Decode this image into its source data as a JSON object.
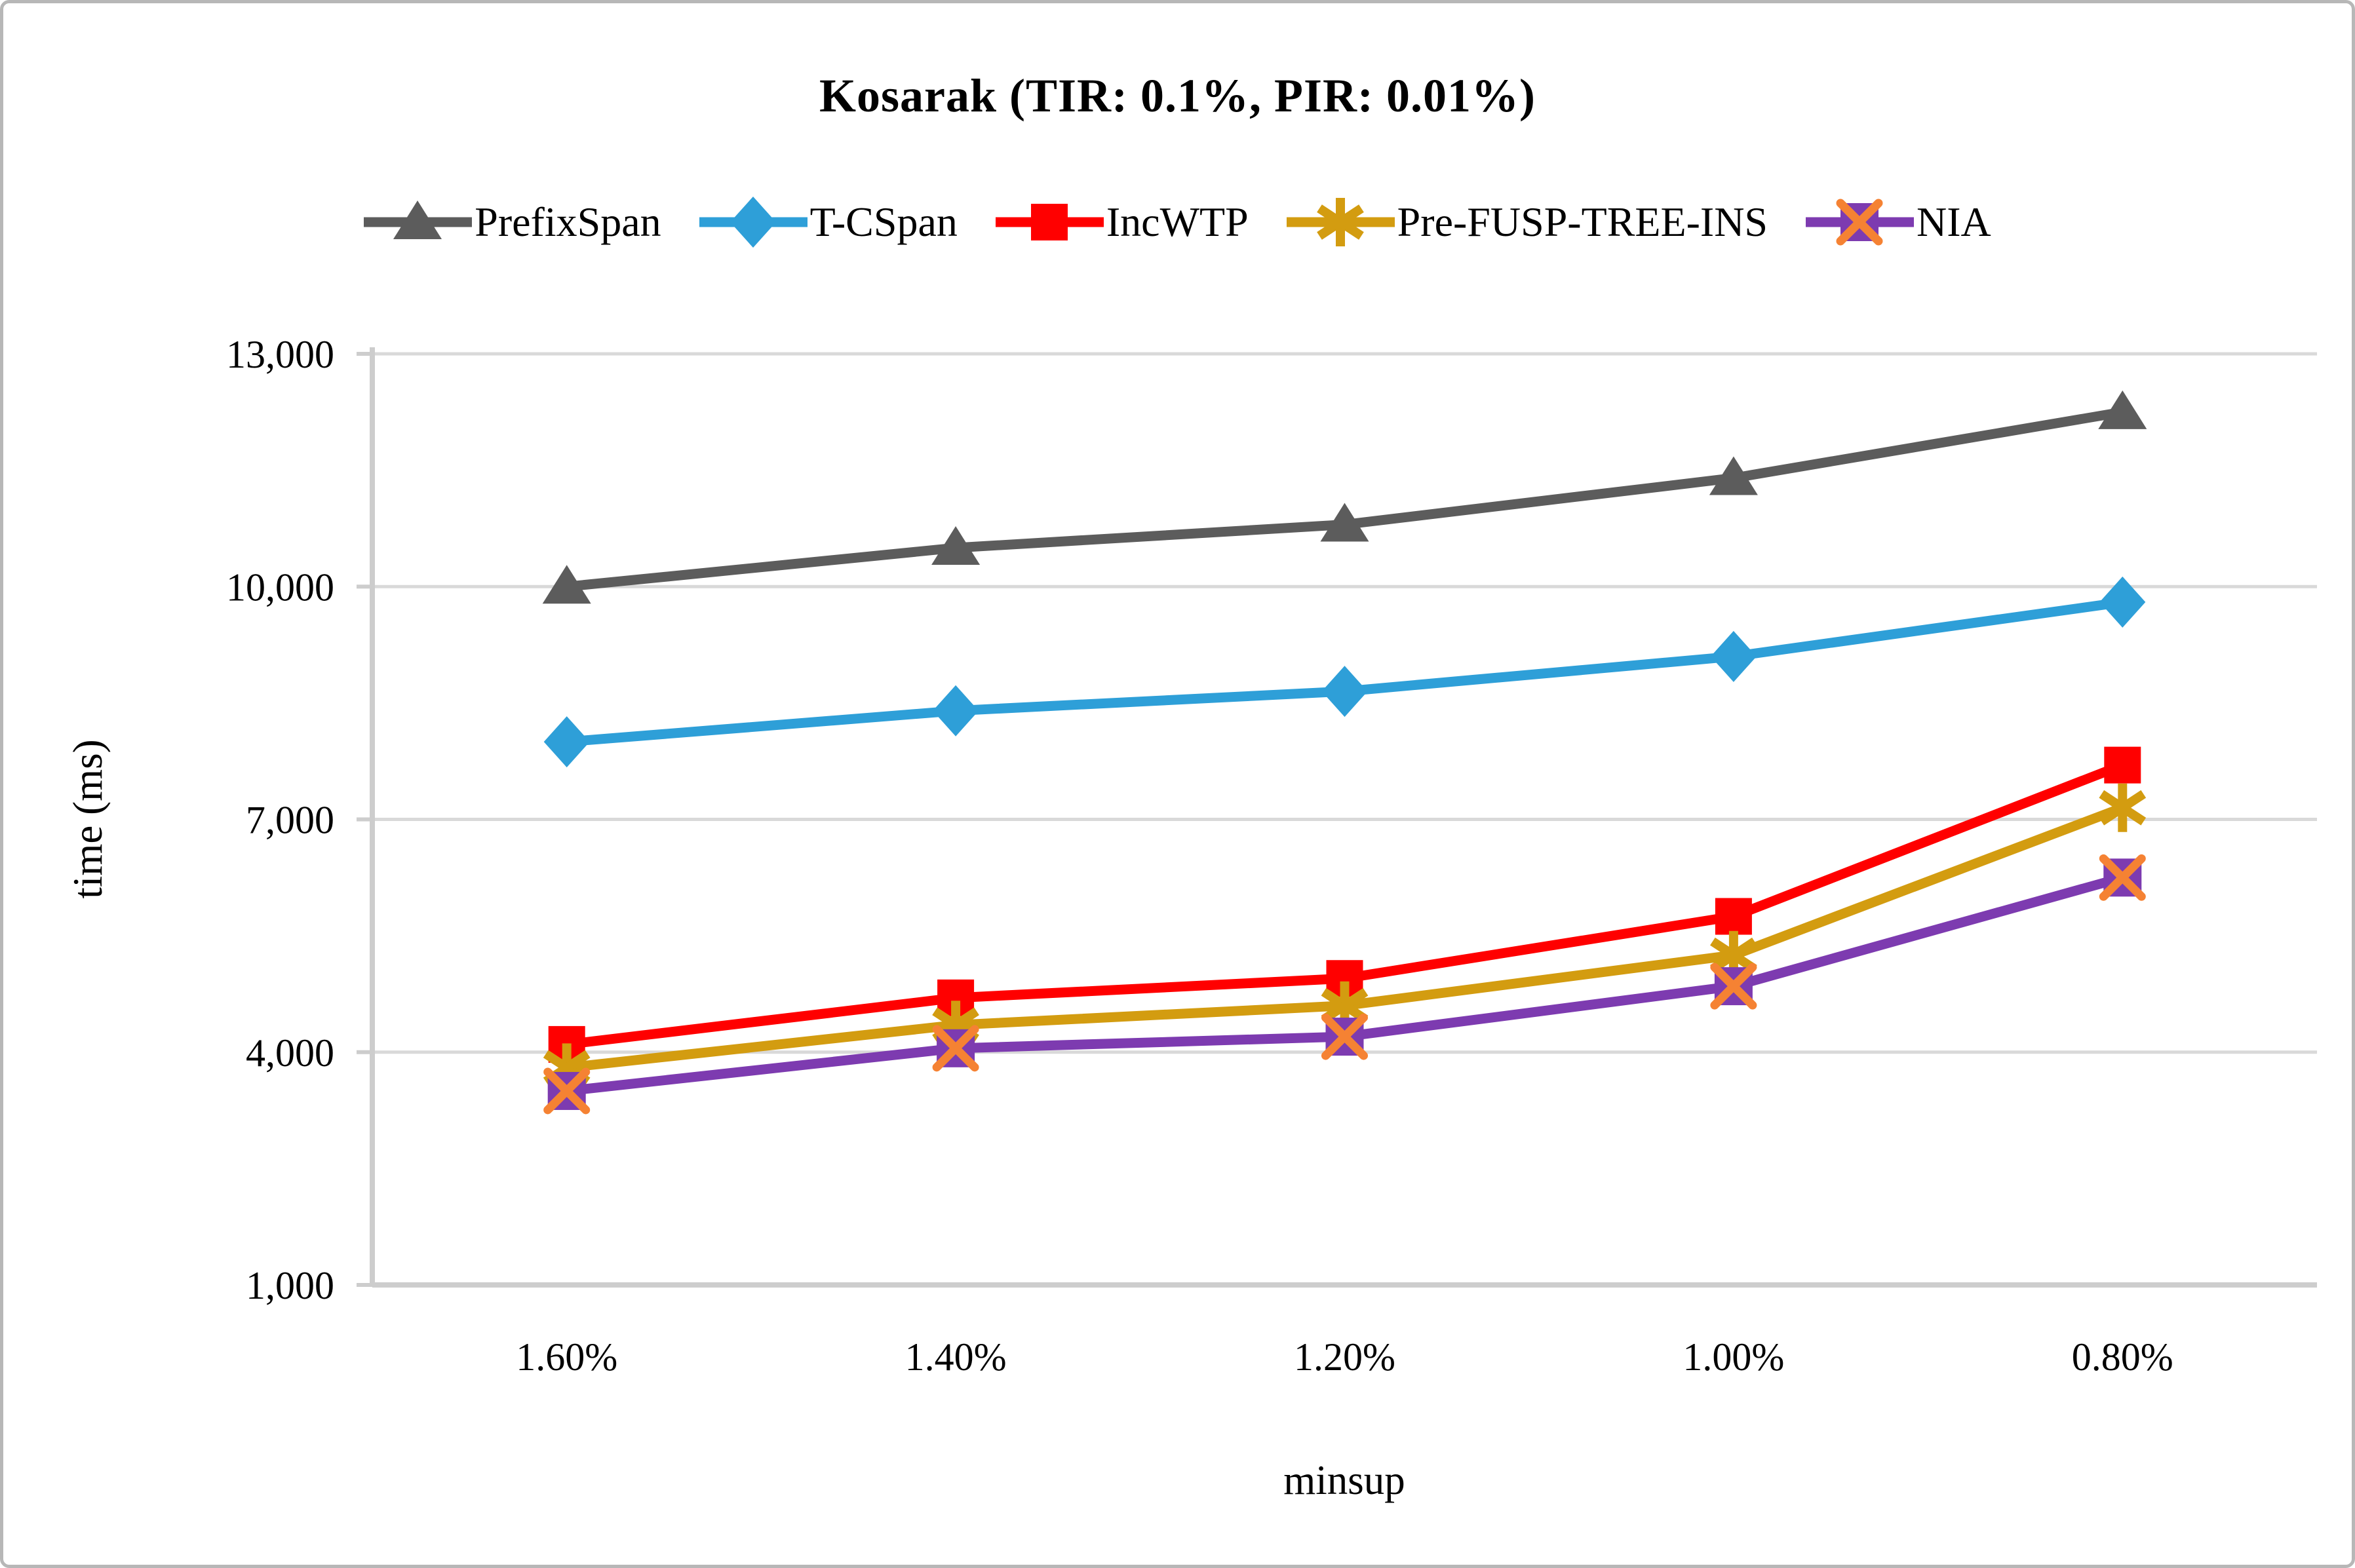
{
  "chart_data": {
    "type": "line",
    "title": "Kosarak (TIR: 0.1%, PIR: 0.01%)",
    "xlabel": "minsup",
    "ylabel": "time  (ms)",
    "categories": [
      "1.60%",
      "1.40%",
      "1.20%",
      "1.00%",
      "0.80%"
    ],
    "y_tick_labels": [
      "13,000",
      "10,000",
      "7,000",
      "4,000",
      "1,000"
    ],
    "y_tick_values": [
      13000,
      10000,
      7000,
      4000,
      1000
    ],
    "ylim": [
      1000,
      13000
    ],
    "grid": true,
    "legend_position": "top",
    "series": [
      {
        "name": "PrefixSpan",
        "marker": "triangle",
        "color": "#5C5C5C",
        "values": [
          10000,
          10500,
          10800,
          11400,
          12250
        ]
      },
      {
        "name": "T-CSpan",
        "marker": "diamond",
        "color": "#2E9FD8",
        "values": [
          8000,
          8400,
          8650,
          9100,
          9800
        ]
      },
      {
        "name": "IncWTP",
        "marker": "square",
        "color": "#FF0000",
        "values": [
          4100,
          4700,
          4950,
          5750,
          7700
        ]
      },
      {
        "name": "Pre-FUSP-TREE-INS",
        "marker": "asterisk",
        "color": "#D39C10",
        "values": [
          3800,
          4350,
          4600,
          5250,
          7150
        ]
      },
      {
        "name": "NIA",
        "marker": "x-square",
        "color": "#7D3BB0",
        "marker_x_color": "#F58233",
        "values": [
          3500,
          4050,
          4200,
          4850,
          6250
        ]
      }
    ],
    "style": {
      "grid_color": "#D9D9D9",
      "axis_color": "#CDCDCD",
      "text_color": "#000000"
    }
  }
}
